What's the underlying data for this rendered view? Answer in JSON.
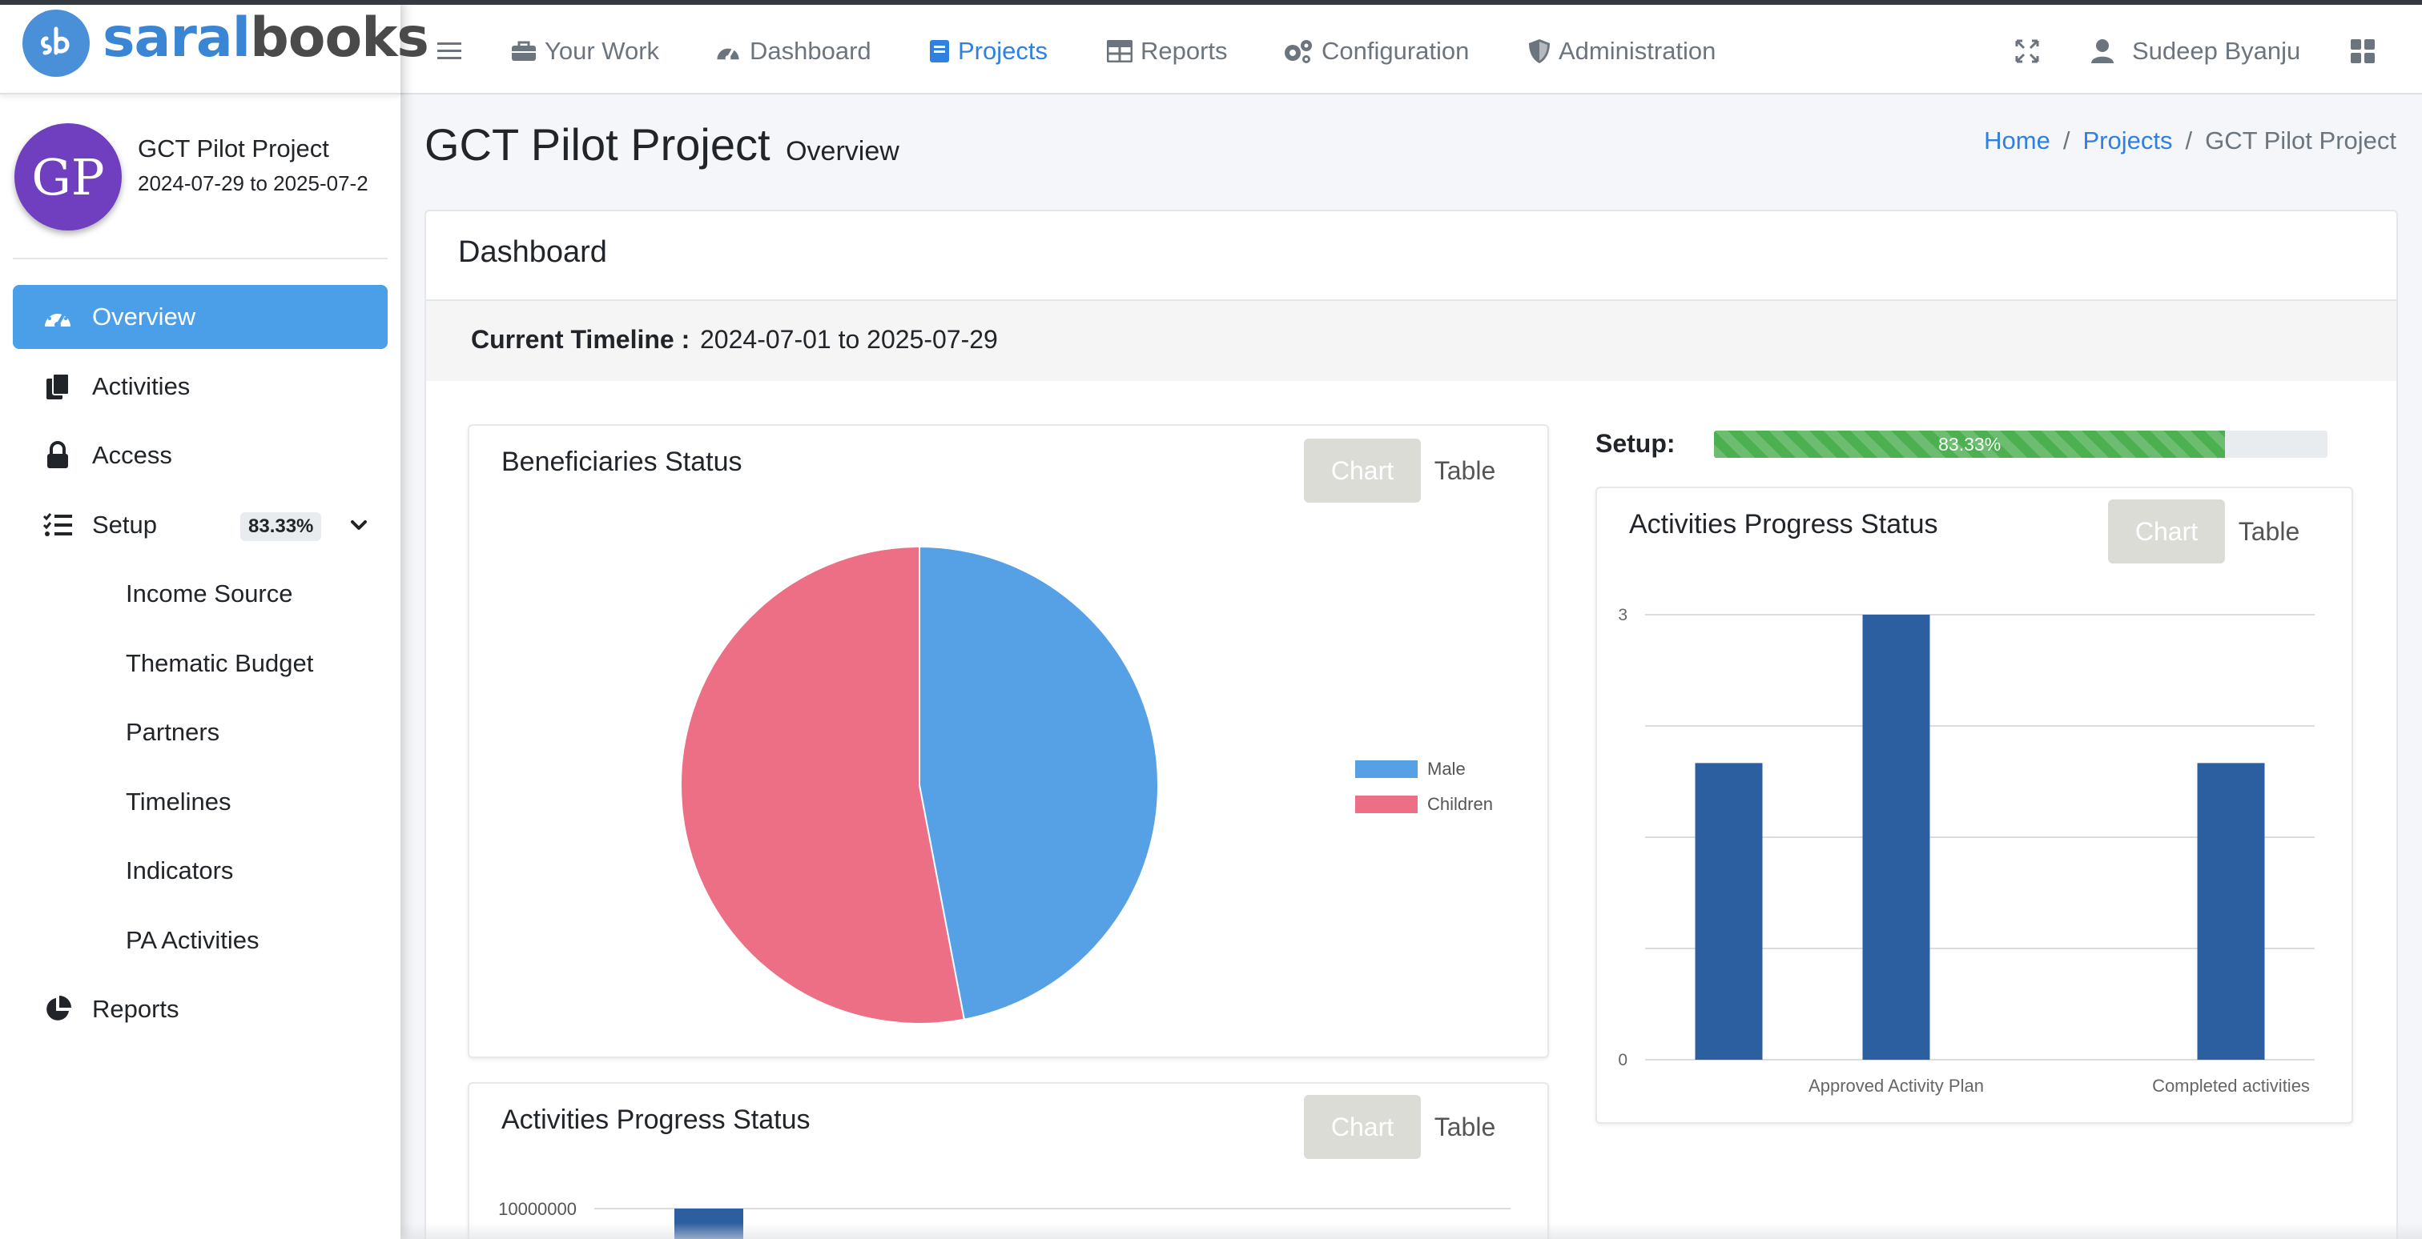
{
  "brand": {
    "saral": "saral",
    "books": "books",
    "logo_text": "sb"
  },
  "navbar": {
    "items": [
      {
        "label": "Your Work",
        "icon": "briefcase-icon"
      },
      {
        "label": "Dashboard",
        "icon": "gauge-icon"
      },
      {
        "label": "Projects",
        "icon": "book-icon",
        "active": true
      },
      {
        "label": "Reports",
        "icon": "table-icon"
      },
      {
        "label": "Configuration",
        "icon": "cogs-icon"
      },
      {
        "label": "Administration",
        "icon": "shield-icon"
      }
    ],
    "user_name": "Sudeep Byanju"
  },
  "project": {
    "initials": "GP",
    "name": "GCT Pilot Project",
    "dates": "2024-07-29 to 2025-07-2"
  },
  "sidebar": {
    "items": [
      {
        "label": "Overview",
        "icon": "gauge-icon",
        "active": true
      },
      {
        "label": "Activities",
        "icon": "copy-icon"
      },
      {
        "label": "Access",
        "icon": "lock-icon"
      },
      {
        "label": "Setup",
        "icon": "list-check-icon",
        "badge": "83.33%"
      },
      {
        "label": "Income Source"
      },
      {
        "label": "Thematic Budget"
      },
      {
        "label": "Partners"
      },
      {
        "label": "Timelines"
      },
      {
        "label": "Indicators"
      },
      {
        "label": "PA Activities"
      },
      {
        "label": "Reports",
        "icon": "chart-pie-icon"
      }
    ]
  },
  "page": {
    "title": "GCT Pilot Project",
    "subtitle": "Overview"
  },
  "breadcrumb": {
    "home": "Home",
    "projects": "Projects",
    "current": "GCT Pilot Project",
    "sep": "/"
  },
  "dashboard": {
    "title": "Dashboard",
    "timeline_label": "Current Timeline :",
    "timeline_value": "2024-07-01 to 2025-07-29",
    "setup_label": "Setup:",
    "setup_progress": 83.33,
    "setup_progress_text": "83.33%",
    "chart_button": "Chart",
    "table_button": "Table"
  },
  "colors": {
    "primary": "#2f80e0",
    "active_nav": "#4a9fe8",
    "avatar": "#6f3fc0",
    "male": "#56a0e5",
    "children": "#ec6f85",
    "bar": "#2c5fa0",
    "progress": "#4caf50"
  },
  "chart_data": [
    {
      "type": "pie",
      "title": "Beneficiaries Status",
      "categories": [
        "Male",
        "Children"
      ],
      "values": [
        47,
        53
      ],
      "legend": "right"
    },
    {
      "type": "bar",
      "title": "Activities Progress Status",
      "categories": [
        "",
        "Approved Activity Plan",
        "",
        "Completed activities"
      ],
      "values": [
        2,
        3,
        0,
        2
      ],
      "ylim": [
        0,
        3
      ],
      "y_ticks": [
        "3",
        "0"
      ],
      "grid": true
    },
    {
      "type": "bar",
      "title": "Activities Progress Status",
      "y_ticks": [
        "10000000"
      ],
      "ylim": [
        0,
        10000000
      ],
      "grid": true
    }
  ]
}
